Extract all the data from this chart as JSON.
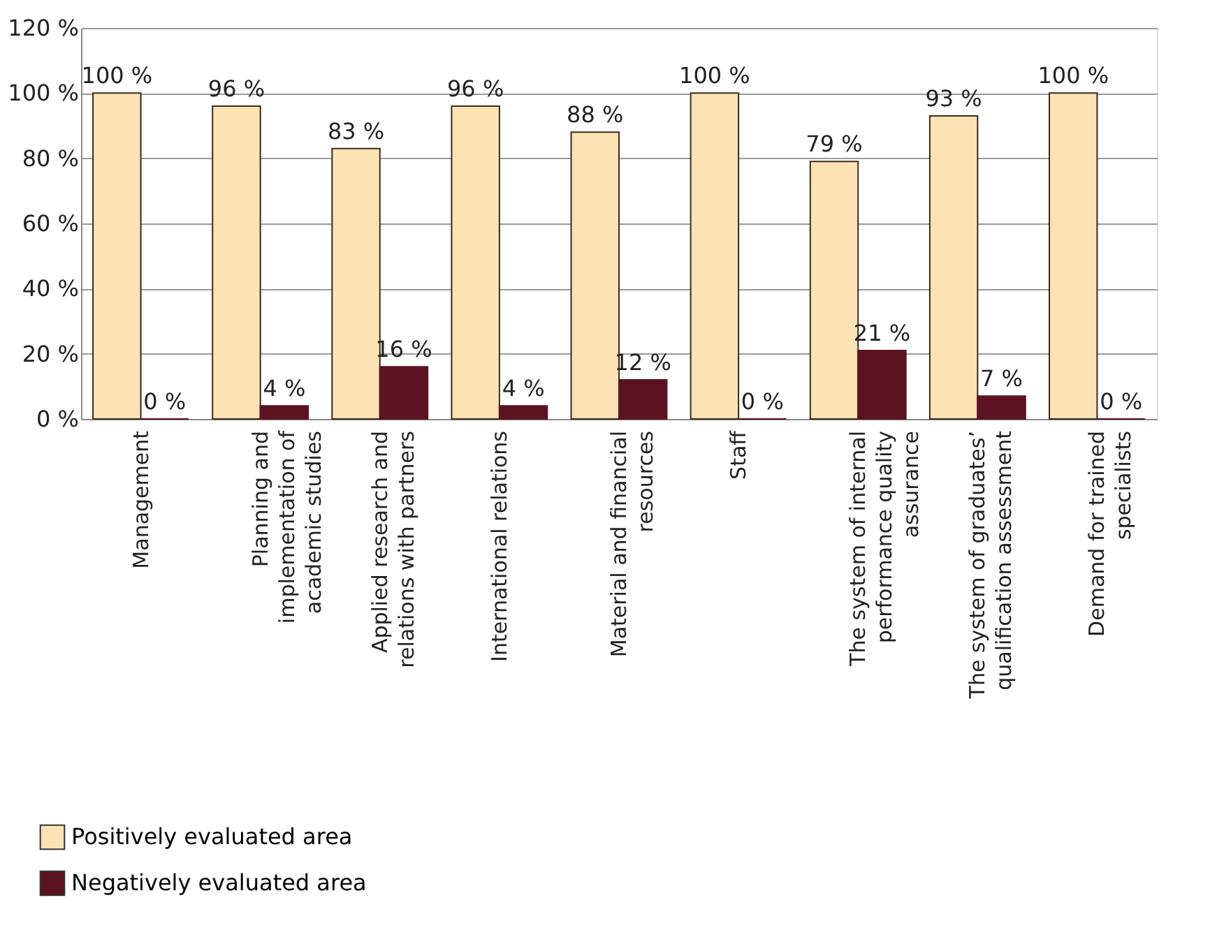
{
  "chart_data": {
    "type": "bar",
    "categories": [
      "Management",
      "Planning and implementation of academic studies",
      "Applied research and relations with partners",
      "International relations",
      "Material and financial resources",
      "Staff",
      "The system of internal performance quality assurance",
      "The system of graduates’ qualification assessment",
      "Demand for trained specialists"
    ],
    "series": [
      {
        "name": "Positively evaluated area",
        "color": "#fde2b3",
        "values": [
          100,
          96,
          83,
          96,
          88,
          100,
          79,
          93,
          100
        ],
        "value_labels": [
          "100 %",
          "96 %",
          "83 %",
          "96 %",
          "88 %",
          "100 %",
          "79 %",
          "93 %",
          "100 %"
        ]
      },
      {
        "name": "Negatively evaluated area",
        "color": "#5b1322",
        "values": [
          0,
          4,
          16,
          4,
          12,
          0,
          21,
          7,
          0
        ],
        "value_labels": [
          "0 %",
          "4 %",
          "16 %",
          "4 %",
          "12 %",
          "0 %",
          "21 %",
          "7 %",
          "0 %"
        ]
      }
    ],
    "ylim": [
      0,
      120
    ],
    "yticks": [
      {
        "value": 0,
        "label": "0 %"
      },
      {
        "value": 20,
        "label": "20 %"
      },
      {
        "value": 40,
        "label": "40 %"
      },
      {
        "value": 60,
        "label": "60 %"
      },
      {
        "value": 80,
        "label": "80 %"
      },
      {
        "value": 100,
        "label": "100 %"
      },
      {
        "value": 120,
        "label": "120 %"
      }
    ],
    "grid": "y",
    "legend": "bottom left"
  }
}
